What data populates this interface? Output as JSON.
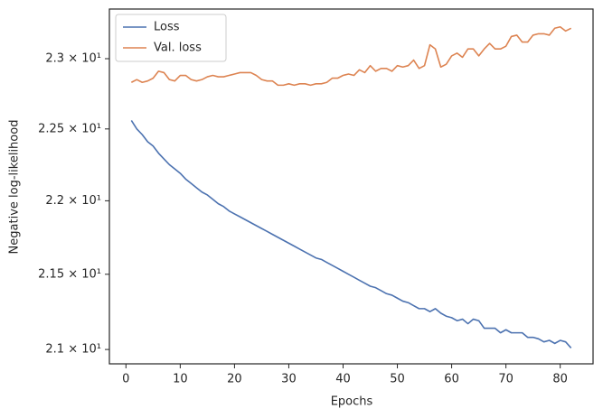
{
  "chart_data": {
    "type": "line",
    "xlabel": "Epochs",
    "ylabel": "Negative log-likelihood",
    "x": [
      1,
      2,
      3,
      4,
      5,
      6,
      7,
      8,
      9,
      10,
      11,
      12,
      13,
      14,
      15,
      16,
      17,
      18,
      19,
      20,
      21,
      22,
      23,
      24,
      25,
      26,
      27,
      28,
      29,
      30,
      31,
      32,
      33,
      34,
      35,
      36,
      37,
      38,
      39,
      40,
      41,
      42,
      43,
      44,
      45,
      46,
      47,
      48,
      49,
      50,
      51,
      52,
      53,
      54,
      55,
      56,
      57,
      58,
      59,
      60,
      61,
      62,
      63,
      64,
      65,
      66,
      67,
      68,
      69,
      70,
      71,
      72,
      73,
      74,
      75,
      76,
      77,
      78,
      79,
      80,
      81,
      82
    ],
    "series": [
      {
        "name": "Loss",
        "color": "#4c72b0",
        "values": [
          22.56,
          22.5,
          22.46,
          22.41,
          22.38,
          22.33,
          22.29,
          22.25,
          22.22,
          22.19,
          22.15,
          22.12,
          22.09,
          22.06,
          22.04,
          22.01,
          21.98,
          21.96,
          21.93,
          21.91,
          21.89,
          21.87,
          21.85,
          21.83,
          21.81,
          21.79,
          21.77,
          21.75,
          21.73,
          21.71,
          21.69,
          21.67,
          21.65,
          21.63,
          21.61,
          21.6,
          21.58,
          21.56,
          21.54,
          21.52,
          21.5,
          21.48,
          21.46,
          21.44,
          21.42,
          21.41,
          21.39,
          21.37,
          21.36,
          21.34,
          21.32,
          21.31,
          21.29,
          21.27,
          21.27,
          21.25,
          21.27,
          21.24,
          21.22,
          21.21,
          21.19,
          21.2,
          21.17,
          21.2,
          21.19,
          21.14,
          21.14,
          21.14,
          21.11,
          21.13,
          21.11,
          21.11,
          21.11,
          21.08,
          21.08,
          21.07,
          21.05,
          21.06,
          21.04,
          21.06,
          21.05,
          21.01
        ]
      },
      {
        "name": "Val. loss",
        "color": "#dd8452",
        "values": [
          22.83,
          22.85,
          22.83,
          22.84,
          22.86,
          22.91,
          22.9,
          22.85,
          22.84,
          22.88,
          22.88,
          22.85,
          22.84,
          22.85,
          22.87,
          22.88,
          22.87,
          22.87,
          22.88,
          22.89,
          22.9,
          22.9,
          22.9,
          22.88,
          22.85,
          22.84,
          22.84,
          22.81,
          22.81,
          22.82,
          22.81,
          22.82,
          22.82,
          22.81,
          22.82,
          22.82,
          22.83,
          22.86,
          22.86,
          22.88,
          22.89,
          22.88,
          22.92,
          22.9,
          22.95,
          22.91,
          22.93,
          22.93,
          22.91,
          22.95,
          22.94,
          22.95,
          22.99,
          22.93,
          22.95,
          23.1,
          23.07,
          22.94,
          22.96,
          23.02,
          23.04,
          23.01,
          23.07,
          23.07,
          23.02,
          23.07,
          23.11,
          23.07,
          23.07,
          23.09,
          23.16,
          23.17,
          23.12,
          23.12,
          23.17,
          23.18,
          23.18,
          23.17,
          23.22,
          23.23,
          23.2,
          23.22
        ]
      }
    ],
    "xlim": [
      -3.05,
      86.05
    ],
    "xticks": [
      0,
      10,
      20,
      30,
      40,
      50,
      60,
      70,
      80
    ],
    "ylim": [
      20.906,
      23.36
    ],
    "yscale": "log",
    "yticks": [
      {
        "value": 21,
        "label": "2.1 × 10¹"
      },
      {
        "value": 21.5,
        "label": "2.15 × 10¹"
      },
      {
        "value": 22,
        "label": "2.2 × 10¹"
      },
      {
        "value": 22.5,
        "label": "2.25 × 10¹"
      },
      {
        "value": 23,
        "label": "2.3 × 10¹"
      }
    ],
    "grid": false,
    "legend": "upper left"
  }
}
